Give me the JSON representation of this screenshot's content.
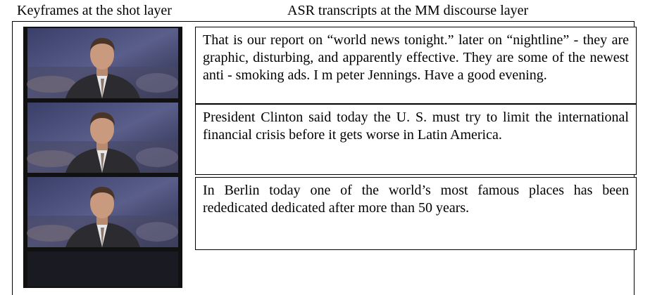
{
  "header": {
    "left_title": "Keyframes at the shot layer",
    "right_title": "ASR transcripts at the MM discourse layer"
  },
  "transcripts": [
    "That is our report on “world news tonight.” later on “nightline” - they are graphic, disturbing, and apparently effective. They are some of the newest anti - smoking ads. I m peter Jennings. Have a good evening.",
    "President Clinton said today the U. S. must try to limit the international financial crisis before it gets worse in Latin America.",
    "In Berlin today one of the world’s most famous places has been rededicated dedicated after more than 50 years."
  ]
}
